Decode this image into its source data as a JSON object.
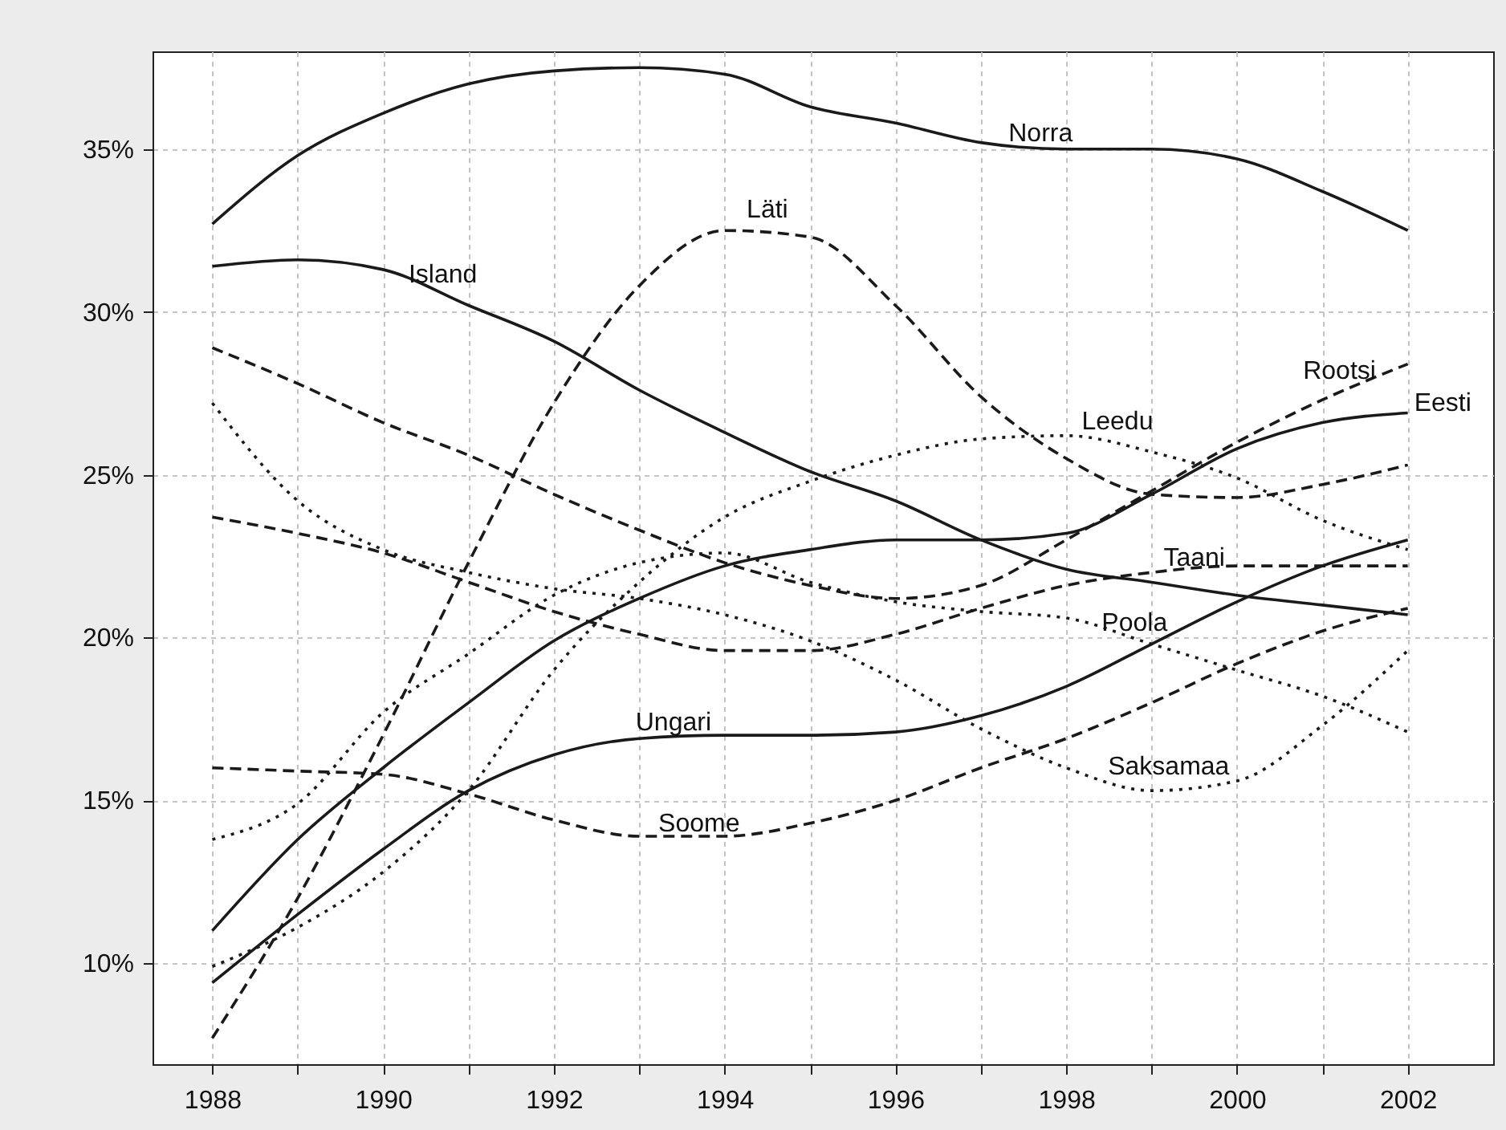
{
  "chart_data": {
    "type": "line",
    "x": [
      1988,
      1989,
      1990,
      1991,
      1992,
      1993,
      1994,
      1995,
      1996,
      1997,
      1998,
      1999,
      2000,
      2001,
      2002
    ],
    "series": [
      {
        "color": "#1a1a1a",
        "line_style": "solid",
        "values": [
          32.7,
          34.8,
          36.1,
          37.0,
          37.4,
          37.5,
          37.3,
          36.3,
          35.8,
          35.2,
          35.0,
          35.0,
          34.7,
          33.7,
          32.5
        ]
      },
      {
        "color": "#1a1a1a",
        "line_style": "solid",
        "values": [
          31.4,
          31.6,
          31.3,
          30.2,
          29.1,
          27.6,
          26.3,
          25.1,
          24.2,
          23.0,
          22.1,
          21.7,
          21.3,
          21.0,
          20.7
        ]
      },
      {
        "color": "#1a1a1a",
        "line_style": "dashed",
        "values": [
          7.7,
          12.0,
          17.0,
          22.3,
          27.2,
          30.8,
          32.5,
          32.3,
          30.2,
          27.4,
          25.5,
          24.4,
          24.3,
          24.7,
          25.3
        ]
      },
      {
        "color": "#1a1a1a",
        "line_style": "dashed",
        "values": [
          28.9,
          27.8,
          26.6,
          25.6,
          24.4,
          23.3,
          22.3,
          21.6,
          21.2,
          21.6,
          23.0,
          24.5,
          26.0,
          27.3,
          28.4
        ]
      },
      {
        "color": "#1a1a1a",
        "line_style": "solid",
        "values": [
          11.0,
          13.8,
          16.0,
          18.0,
          19.9,
          21.2,
          22.2,
          22.7,
          23.0,
          23.0,
          23.2,
          24.4,
          25.8,
          26.6,
          26.9
        ]
      },
      {
        "color": "#1a1a1a",
        "line_style": "dotted",
        "values": [
          9.9,
          11.1,
          12.8,
          15.3,
          19.0,
          21.7,
          23.7,
          24.8,
          25.6,
          26.1,
          26.2,
          25.7,
          24.9,
          23.6,
          22.7
        ]
      },
      {
        "color": "#1a1a1a",
        "line_style": "dashed",
        "values": [
          23.7,
          23.2,
          22.6,
          21.7,
          20.8,
          20.1,
          19.6,
          19.6,
          20.1,
          20.9,
          21.6,
          22.0,
          22.2,
          22.2,
          22.2
        ]
      },
      {
        "color": "#1a1a1a",
        "line_style": "dotted",
        "values": [
          13.8,
          14.9,
          17.7,
          19.5,
          21.3,
          22.3,
          22.6,
          21.7,
          21.1,
          20.8,
          20.6,
          19.8,
          19.0,
          18.2,
          17.1
        ]
      },
      {
        "color": "#1a1a1a",
        "line_style": "solid",
        "values": [
          9.4,
          11.5,
          13.5,
          15.3,
          16.4,
          16.9,
          17.0,
          17.0,
          17.1,
          17.6,
          18.5,
          19.8,
          21.1,
          22.2,
          23.0
        ]
      },
      {
        "color": "#1a1a1a",
        "line_style": "dotted",
        "values": [
          27.2,
          24.2,
          22.7,
          22.0,
          21.5,
          21.2,
          20.7,
          19.9,
          18.7,
          17.2,
          16.0,
          15.3,
          15.6,
          17.3,
          19.6
        ]
      },
      {
        "color": "#1a1a1a",
        "line_style": "dashed",
        "values": [
          16.0,
          15.9,
          15.8,
          15.2,
          14.4,
          13.9,
          13.9,
          14.3,
          15.0,
          16.0,
          16.9,
          18.0,
          19.2,
          20.2,
          20.9
        ]
      }
    ],
    "annotations": [
      {
        "text": "Norra",
        "x": 1997.7,
        "y": 35.05
      },
      {
        "text": "Läti",
        "x": 1994.5,
        "y": 32.7
      },
      {
        "text": "Island",
        "x": 1990.7,
        "y": 30.7
      },
      {
        "text": "Rootsi",
        "x": 2001.2,
        "y": 27.75
      },
      {
        "text": "Eesti",
        "x": 2002,
        "y": 26.9
      },
      {
        "text": "Leedu",
        "x": 1998.6,
        "y": 26.2
      },
      {
        "text": "Taani",
        "x": 1999.5,
        "y": 22.0
      },
      {
        "text": "Poola",
        "x": 1998.8,
        "y": 20.0
      },
      {
        "text": "Ungari",
        "x": 1993.4,
        "y": 16.95
      },
      {
        "text": "Saksamaa",
        "x": 1999.2,
        "y": 15.6
      },
      {
        "text": "Soome",
        "x": 1993.7,
        "y": 13.85
      }
    ],
    "xlim": [
      1987.3,
      2003
    ],
    "xticks": [
      1988,
      {
        "value": 1989,
        "label": null
      },
      1990,
      {
        "value": 1991,
        "label": null
      },
      1992,
      {
        "value": 1993,
        "label": null
      },
      1994,
      {
        "value": 1995,
        "label": null
      },
      1996,
      {
        "value": 1997,
        "label": null
      },
      1998,
      {
        "value": 1999,
        "label": null
      },
      2000,
      {
        "value": 2001,
        "label": null
      },
      2002
    ],
    "ylim": [
      6.9,
      38
    ],
    "yticks": [
      {
        "value": 10,
        "label": "10%"
      },
      {
        "value": 15,
        "label": "15%"
      },
      {
        "value": 20,
        "label": "20%"
      },
      {
        "value": 25,
        "label": "25%"
      },
      {
        "value": 30,
        "label": "30%"
      },
      {
        "value": 35,
        "label": "35%"
      }
    ],
    "grid": true
  }
}
